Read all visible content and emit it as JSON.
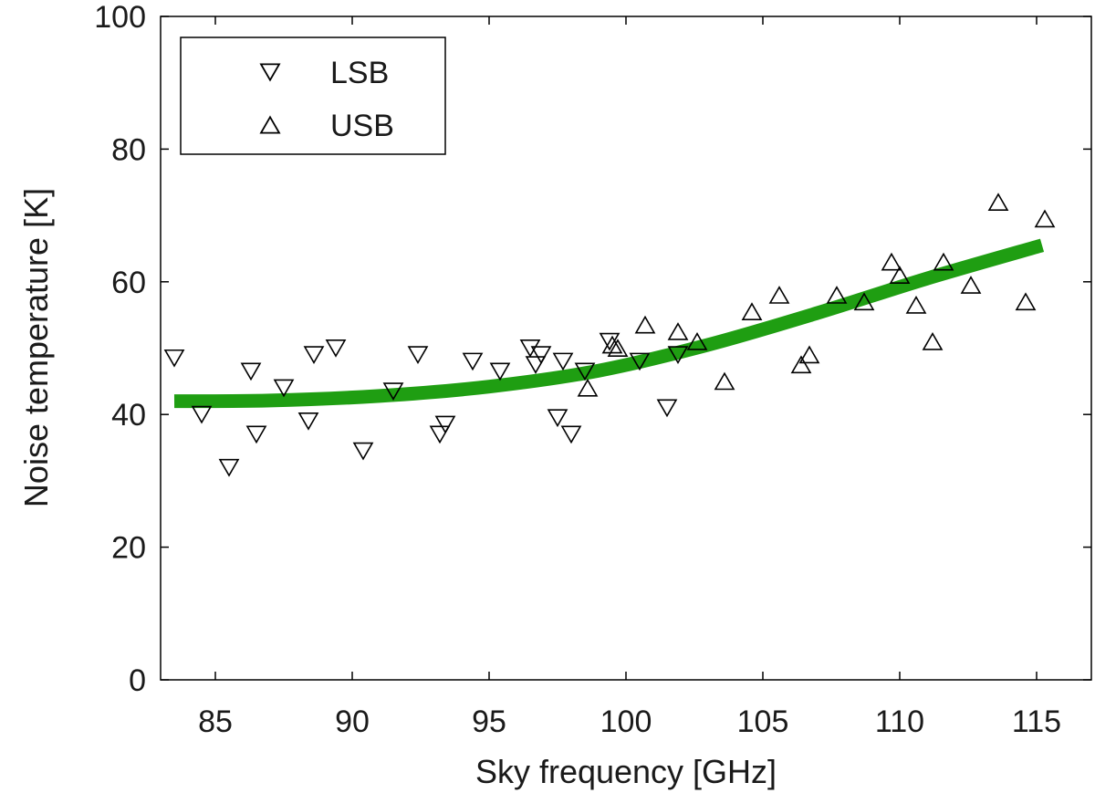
{
  "chart_data": {
    "type": "scatter",
    "xlabel": "Sky frequency [GHz]",
    "ylabel": "Noise temperature [K]",
    "xlim": [
      83,
      117
    ],
    "ylim": [
      0,
      100
    ],
    "xticks": [
      85,
      90,
      95,
      100,
      105,
      110,
      115
    ],
    "yticks": [
      0,
      20,
      40,
      60,
      80,
      100
    ],
    "grid": false,
    "legend_position": "top-left",
    "series": [
      {
        "name": "LSB",
        "marker": "triangle-down",
        "color": "#000000",
        "points": [
          [
            83.5,
            48.5
          ],
          [
            84.5,
            40
          ],
          [
            85.5,
            32
          ],
          [
            86.3,
            46.5
          ],
          [
            86.5,
            37
          ],
          [
            87.5,
            44
          ],
          [
            88.4,
            39
          ],
          [
            88.6,
            49
          ],
          [
            89.4,
            50
          ],
          [
            90.4,
            34.5
          ],
          [
            91.5,
            43.5
          ],
          [
            92.4,
            49
          ],
          [
            93.2,
            37
          ],
          [
            93.4,
            38.5
          ],
          [
            94.4,
            48
          ],
          [
            95.4,
            46.5
          ],
          [
            96.5,
            50
          ],
          [
            96.7,
            47.5
          ],
          [
            96.9,
            49
          ],
          [
            97.5,
            39.5
          ],
          [
            97.7,
            48
          ],
          [
            98.0,
            37
          ],
          [
            98.5,
            46.5
          ],
          [
            99.4,
            51
          ],
          [
            100.5,
            48
          ],
          [
            101.5,
            41
          ],
          [
            101.9,
            49
          ]
        ]
      },
      {
        "name": "USB",
        "marker": "triangle-up",
        "color": "#000000",
        "points": [
          [
            98.6,
            44
          ],
          [
            99.5,
            50.5
          ],
          [
            99.7,
            50
          ],
          [
            100.7,
            53.5
          ],
          [
            101.9,
            52.5
          ],
          [
            102.6,
            51
          ],
          [
            103.6,
            45
          ],
          [
            104.6,
            55.5
          ],
          [
            105.6,
            58
          ],
          [
            106.4,
            47.5
          ],
          [
            106.7,
            49
          ],
          [
            107.7,
            58
          ],
          [
            108.7,
            57
          ],
          [
            109.7,
            63
          ],
          [
            110.0,
            61
          ],
          [
            110.6,
            56.5
          ],
          [
            111.2,
            51
          ],
          [
            111.6,
            63
          ],
          [
            112.6,
            59.5
          ],
          [
            113.6,
            72
          ],
          [
            114.6,
            57
          ],
          [
            115.3,
            69.5
          ]
        ]
      }
    ],
    "fit": {
      "color": "#1f9e12",
      "points": [
        [
          83.5,
          42
        ],
        [
          87,
          42.1
        ],
        [
          91,
          42.8
        ],
        [
          95,
          44.2
        ],
        [
          99,
          46.6
        ],
        [
          103,
          50.5
        ],
        [
          107,
          55.3
        ],
        [
          111,
          60.5
        ],
        [
          115.2,
          65.5
        ]
      ]
    }
  }
}
